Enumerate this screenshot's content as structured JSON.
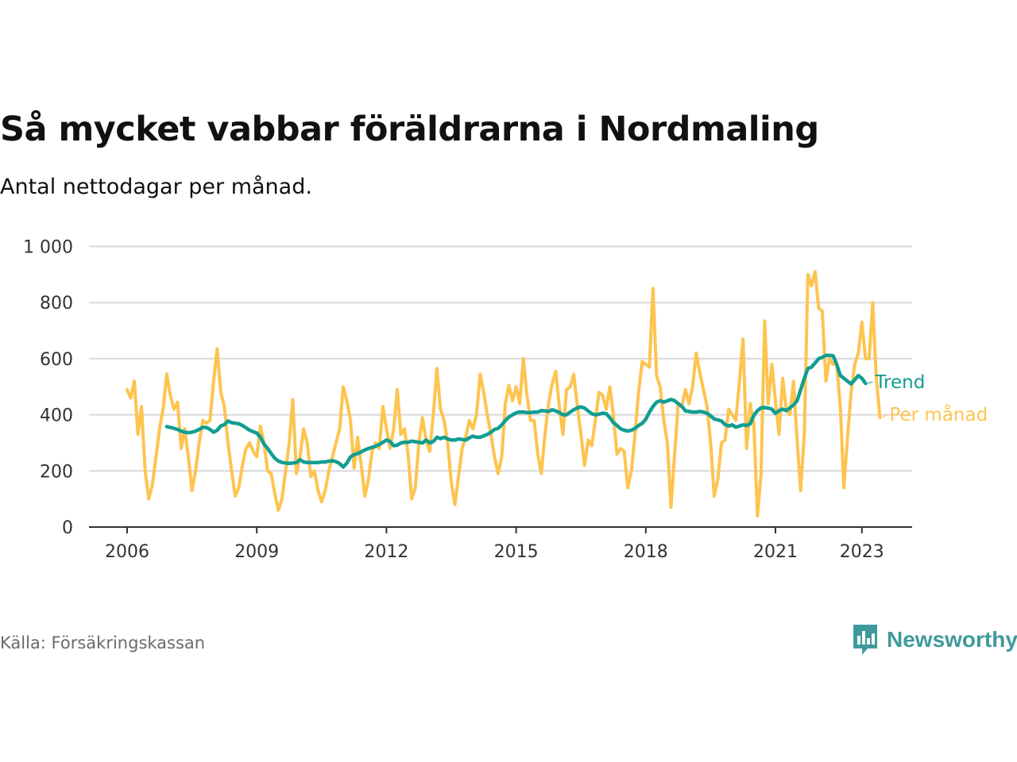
{
  "header": {
    "title": "Så mycket vabbar föräldrarna i Nordmaling",
    "subtitle": "Antal nettodagar per månad."
  },
  "footer": {
    "source": "Källa: Försäkringskassan",
    "brand": "Newsworthy",
    "brand_icon": "newsworthy-logo-icon"
  },
  "colors": {
    "trend": "#129e92",
    "monthly": "#fec44f",
    "grid": "#d9d9d9",
    "axis": "#333333",
    "brand": "#3f9a9b"
  },
  "chart_data": {
    "type": "line",
    "title": "Så mycket vabbar föräldrarna i Nordmaling",
    "subtitle": "Antal nettodagar per månad.",
    "xlabel": "",
    "ylabel": "",
    "ylim": [
      0,
      1000
    ],
    "yticks": [
      0,
      200,
      400,
      600,
      800,
      1000
    ],
    "ytick_labels": [
      "0",
      "200",
      "400",
      "600",
      "800",
      "1 000"
    ],
    "xticks": [
      2006,
      2009,
      2012,
      2015,
      2018,
      2021,
      2023
    ],
    "xtick_labels": [
      "2006",
      "2009",
      "2012",
      "2015",
      "2018",
      "2021",
      "2023"
    ],
    "xlim": [
      2006,
      2023.7
    ],
    "grid": true,
    "legend": "direct labels at line ends (right)",
    "series": [
      {
        "name": "Per månad",
        "x_start": 2006.0,
        "step_months": 1,
        "values": [
          490,
          460,
          520,
          330,
          430,
          200,
          100,
          150,
          250,
          350,
          420,
          545,
          470,
          420,
          445,
          280,
          350,
          250,
          130,
          200,
          300,
          380,
          370,
          380,
          520,
          635,
          480,
          430,
          300,
          200,
          110,
          140,
          220,
          280,
          300,
          270,
          250,
          360,
          300,
          200,
          190,
          120,
          60,
          100,
          200,
          300,
          455,
          190,
          250,
          350,
          300,
          180,
          200,
          130,
          90,
          130,
          200,
          250,
          300,
          350,
          500,
          450,
          380,
          210,
          320,
          220,
          110,
          170,
          270,
          300,
          280,
          430,
          350,
          280,
          350,
          490,
          330,
          350,
          260,
          100,
          140,
          300,
          390,
          310,
          270,
          400,
          565,
          420,
          380,
          300,
          160,
          80,
          180,
          280,
          320,
          380,
          350,
          400,
          545,
          480,
          400,
          330,
          250,
          190,
          250,
          440,
          505,
          450,
          500,
          440,
          600,
          470,
          380,
          380,
          260,
          190,
          330,
          440,
          510,
          555,
          430,
          330,
          490,
          500,
          545,
          430,
          330,
          220,
          310,
          290,
          380,
          480,
          470,
          420,
          500,
          400,
          260,
          280,
          270,
          140,
          200,
          330,
          480,
          590,
          580,
          570,
          850,
          540,
          500,
          380,
          300,
          70,
          260,
          440,
          430,
          490,
          440,
          500,
          620,
          550,
          490,
          430,
          300,
          110,
          170,
          300,
          310,
          420,
          400,
          380,
          520,
          670,
          280,
          440,
          370,
          40,
          190,
          735,
          440,
          580,
          450,
          330,
          530,
          420,
          400,
          520,
          310,
          130,
          330,
          900,
          860,
          910,
          780,
          770,
          520,
          600,
          580,
          580,
          430,
          140,
          320,
          480,
          580,
          620,
          730,
          600,
          600,
          800,
          530,
          390
        ]
      },
      {
        "name": "Trend",
        "x_start": 2006.917,
        "step_months": 1,
        "values": [
          358,
          355,
          352,
          348,
          342,
          338,
          336,
          338,
          342,
          348,
          355,
          355,
          348,
          338,
          345,
          360,
          365,
          378,
          372,
          370,
          368,
          362,
          354,
          345,
          340,
          335,
          320,
          296,
          280,
          262,
          245,
          235,
          230,
          228,
          227,
          228,
          230,
          240,
          232,
          230,
          230,
          230,
          230,
          232,
          232,
          235,
          236,
          233,
          226,
          214,
          228,
          250,
          258,
          262,
          268,
          275,
          280,
          284,
          288,
          294,
          302,
          310,
          305,
          290,
          292,
          300,
          302,
          302,
          306,
          304,
          302,
          300,
          310,
          300,
          305,
          320,
          315,
          320,
          314,
          310,
          310,
          314,
          312,
          310,
          318,
          324,
          320,
          320,
          325,
          330,
          338,
          348,
          352,
          364,
          380,
          392,
          400,
          407,
          410,
          410,
          408,
          408,
          410,
          410,
          415,
          414,
          412,
          418,
          414,
          408,
          400,
          400,
          410,
          418,
          425,
          428,
          424,
          414,
          404,
          400,
          402,
          406,
          404,
          390,
          372,
          362,
          350,
          345,
          342,
          345,
          352,
          362,
          370,
          384,
          410,
          430,
          445,
          450,
          445,
          450,
          455,
          450,
          440,
          430,
          414,
          412,
          410,
          410,
          412,
          410,
          405,
          396,
          385,
          382,
          378,
          365,
          360,
          364,
          356,
          360,
          364,
          362,
          368,
          398,
          415,
          425,
          426,
          424,
          420,
          405,
          415,
          420,
          415,
          425,
          435,
          450,
          490,
          530,
          565,
          570,
          585,
          600,
          605,
          612,
          612,
          610,
          580,
          540,
          530,
          520,
          510,
          525,
          540,
          530,
          512
        ]
      }
    ]
  }
}
